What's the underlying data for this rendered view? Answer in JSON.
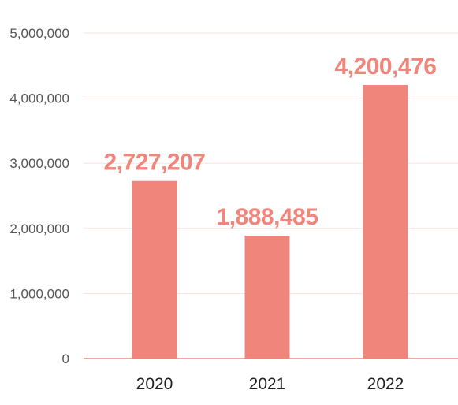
{
  "chart_data": {
    "type": "bar",
    "categories": [
      "2020",
      "2021",
      "2022"
    ],
    "values": [
      2727207,
      1888485,
      4200476
    ],
    "data_labels": [
      "2,727,207",
      "1,888,485",
      "4,200,476"
    ],
    "ylim": [
      0,
      5000000
    ],
    "yticks": [
      0,
      1000000,
      2000000,
      3000000,
      4000000,
      5000000
    ],
    "ytick_labels": [
      "0",
      "1,000,000",
      "2,000,000",
      "3,000,000",
      "4,000,000",
      "5,000,000"
    ],
    "title": "",
    "xlabel": "",
    "ylabel": "",
    "grid": true,
    "legend": "none",
    "colors": {
      "bar": "#f0857c",
      "label": "#f0857c",
      "grid": "#fbe3e1",
      "axis": "#f0857c"
    }
  }
}
